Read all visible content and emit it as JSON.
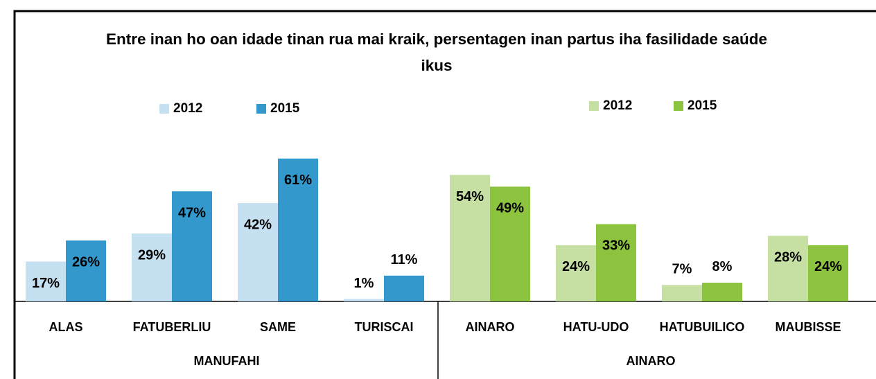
{
  "title": "Entre inan ho oan idade tinan rua mai kraik, persentagen inan partus iha fasilidade saúde ikus",
  "chart_data": [
    {
      "type": "bar",
      "group": "MANUFAHI",
      "categories": [
        "ALAS",
        "FATUBERLIU",
        "SAME",
        "TURISCAI"
      ],
      "ylim": [
        0,
        100
      ],
      "legend": "top",
      "series": [
        {
          "name": "2012",
          "color": "#c5e0f0",
          "values": [
            17,
            29,
            42,
            1
          ],
          "value_labels": [
            "17%",
            "29%",
            "42%",
            "1%"
          ]
        },
        {
          "name": "2015",
          "color": "#3399cc",
          "values": [
            26,
            47,
            61,
            11
          ],
          "value_labels": [
            "26%",
            "47%",
            "61%",
            "11%"
          ]
        }
      ]
    },
    {
      "type": "bar",
      "group": "AINARO",
      "categories": [
        "AINARO",
        "HATU-UDO",
        "HATUBUILICO",
        "MAUBISSE"
      ],
      "ylim": [
        0,
        100
      ],
      "legend": "top",
      "series": [
        {
          "name": "2012",
          "color": "#c6e0a4",
          "values": [
            54,
            24,
            7,
            28
          ],
          "value_labels": [
            "54%",
            "24%",
            "7%",
            "28%"
          ]
        },
        {
          "name": "2015",
          "color": "#8dc43f",
          "values": [
            49,
            33,
            8,
            24
          ],
          "value_labels": [
            "49%",
            "33%",
            "8%",
            "24%"
          ]
        }
      ]
    }
  ]
}
